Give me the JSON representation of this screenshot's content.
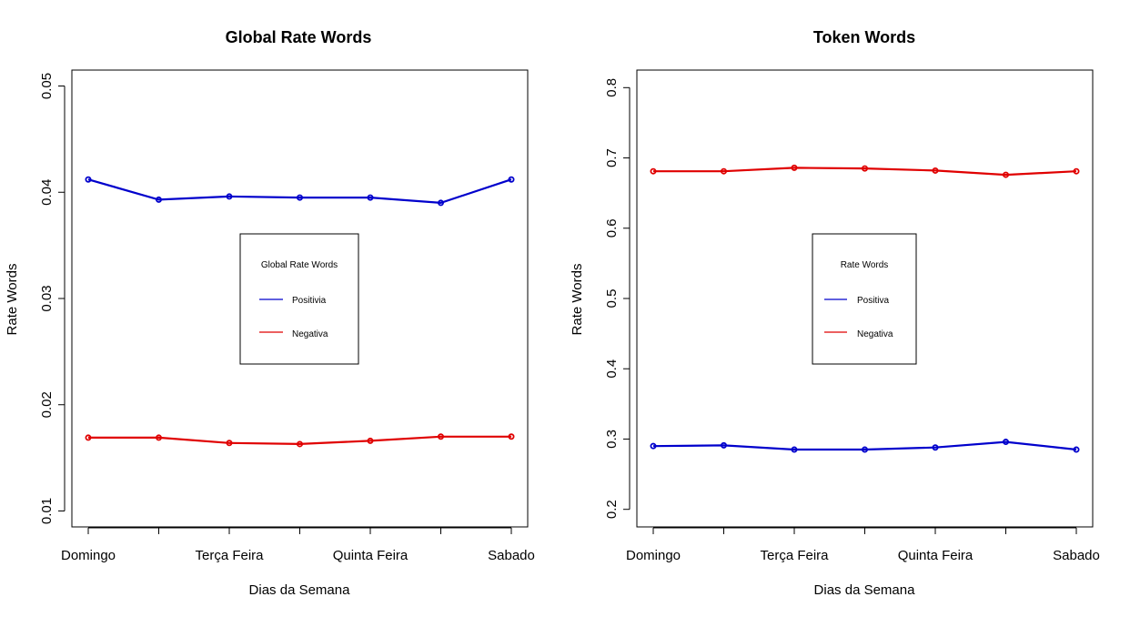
{
  "chart_data": [
    {
      "type": "line",
      "title": "Global Rate Words",
      "xlabel": "Dias da Semana",
      "ylabel": "Rate Words",
      "categories": [
        "Domingo",
        "",
        "Terça Feira",
        "",
        "Quinta Feira",
        "",
        "Sabado"
      ],
      "ylim": [
        0.0085,
        0.0515
      ],
      "yticks": [
        "0.01",
        "0.02",
        "0.03",
        "0.04",
        "0.05"
      ],
      "grid": false,
      "legend_position": "center",
      "legend": {
        "title": "Global Rate Words",
        "entries": [
          {
            "label": "Positivia",
            "color": "#0000cc"
          },
          {
            "label": "Negativa",
            "color": "#e00000"
          }
        ]
      },
      "series": [
        {
          "color": "#0000cc",
          "values": [
            0.0412,
            0.0393,
            0.0396,
            0.0395,
            0.0395,
            0.039,
            0.0412
          ]
        },
        {
          "color": "#e00000",
          "values": [
            0.0169,
            0.0169,
            0.0164,
            0.0163,
            0.0166,
            0.017,
            0.017
          ]
        }
      ]
    },
    {
      "type": "line",
      "title": "Token Words",
      "xlabel": "Dias da Semana",
      "ylabel": "Rate Words",
      "categories": [
        "Domingo",
        "",
        "Terça Feira",
        "",
        "Quinta Feira",
        "",
        "Sabado"
      ],
      "ylim": [
        0.175,
        0.825
      ],
      "yticks": [
        "0.2",
        "0.3",
        "0.4",
        "0.5",
        "0.6",
        "0.7",
        "0.8"
      ],
      "grid": false,
      "legend_position": "center",
      "legend": {
        "title": "Rate Words",
        "entries": [
          {
            "label": "Positiva",
            "color": "#0000cc"
          },
          {
            "label": "Negativa",
            "color": "#e00000"
          }
        ]
      },
      "series": [
        {
          "color": "#e00000",
          "values": [
            0.681,
            0.681,
            0.686,
            0.685,
            0.682,
            0.676,
            0.681
          ]
        },
        {
          "color": "#0000cc",
          "values": [
            0.29,
            0.291,
            0.285,
            0.285,
            0.288,
            0.296,
            0.285
          ]
        }
      ]
    }
  ]
}
